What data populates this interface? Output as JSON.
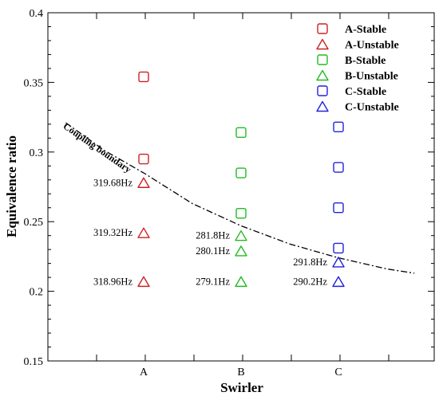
{
  "chart_data": {
    "type": "scatter",
    "xlabel": "Swirler",
    "ylabel": "Equivalence ratio",
    "categories": [
      "A",
      "B",
      "C"
    ],
    "ylim": [
      0.15,
      0.4
    ],
    "yticks": [
      "0.15",
      "0.2",
      "0.25",
      "0.3",
      "0.35",
      "0.4"
    ],
    "legend_position": "top-right",
    "series": [
      {
        "name": "A-Stable",
        "marker": "square",
        "color": "#cc2222",
        "points": [
          {
            "x": "A",
            "y": 0.354
          },
          {
            "x": "A",
            "y": 0.295
          }
        ]
      },
      {
        "name": "A-Unstable",
        "marker": "triangle",
        "color": "#cc2222",
        "points": [
          {
            "x": "A",
            "y": 0.278
          },
          {
            "x": "A",
            "y": 0.242
          },
          {
            "x": "A",
            "y": 0.207
          }
        ]
      },
      {
        "name": "B-Stable",
        "marker": "square",
        "color": "#22bb22",
        "points": [
          {
            "x": "B",
            "y": 0.314
          },
          {
            "x": "B",
            "y": 0.285
          },
          {
            "x": "B",
            "y": 0.256
          }
        ]
      },
      {
        "name": "B-Unstable",
        "marker": "triangle",
        "color": "#22bb22",
        "points": [
          {
            "x": "B",
            "y": 0.24
          },
          {
            "x": "B",
            "y": 0.229
          },
          {
            "x": "B",
            "y": 0.207
          }
        ]
      },
      {
        "name": "C-Stable",
        "marker": "square",
        "color": "#2222dd",
        "points": [
          {
            "x": "C",
            "y": 0.318
          },
          {
            "x": "C",
            "y": 0.289
          },
          {
            "x": "C",
            "y": 0.26
          },
          {
            "x": "C",
            "y": 0.231
          }
        ]
      },
      {
        "name": "C-Unstable",
        "marker": "triangle",
        "color": "#2222dd",
        "points": [
          {
            "x": "C",
            "y": 0.221
          },
          {
            "x": "C",
            "y": 0.207
          }
        ]
      }
    ],
    "annotations": [
      {
        "text": "319.68Hz",
        "x": "A",
        "y": 0.278
      },
      {
        "text": "319.32Hz",
        "x": "A",
        "y": 0.242
      },
      {
        "text": "318.96Hz",
        "x": "A",
        "y": 0.207
      },
      {
        "text": "281.8Hz",
        "x": "B",
        "y": 0.24
      },
      {
        "text": "280.1Hz",
        "x": "B",
        "y": 0.229
      },
      {
        "text": "279.1Hz",
        "x": "B",
        "y": 0.207
      },
      {
        "text": "291.8Hz",
        "x": "C",
        "y": 0.221
      },
      {
        "text": "290.2Hz",
        "x": "C",
        "y": 0.207
      }
    ],
    "boundary": {
      "label": "Coupling boundary",
      "style": "dash-dot",
      "points": [
        {
          "x": 0.2,
          "y": 0.321
        },
        {
          "x": 0.6,
          "y": 0.301
        },
        {
          "x": 1.0,
          "y": 0.285
        },
        {
          "x": 1.5,
          "y": 0.263
        },
        {
          "x": 2.0,
          "y": 0.247
        },
        {
          "x": 2.5,
          "y": 0.234
        },
        {
          "x": 3.0,
          "y": 0.224
        },
        {
          "x": 3.5,
          "y": 0.216
        },
        {
          "x": 3.78,
          "y": 0.213
        }
      ]
    }
  }
}
